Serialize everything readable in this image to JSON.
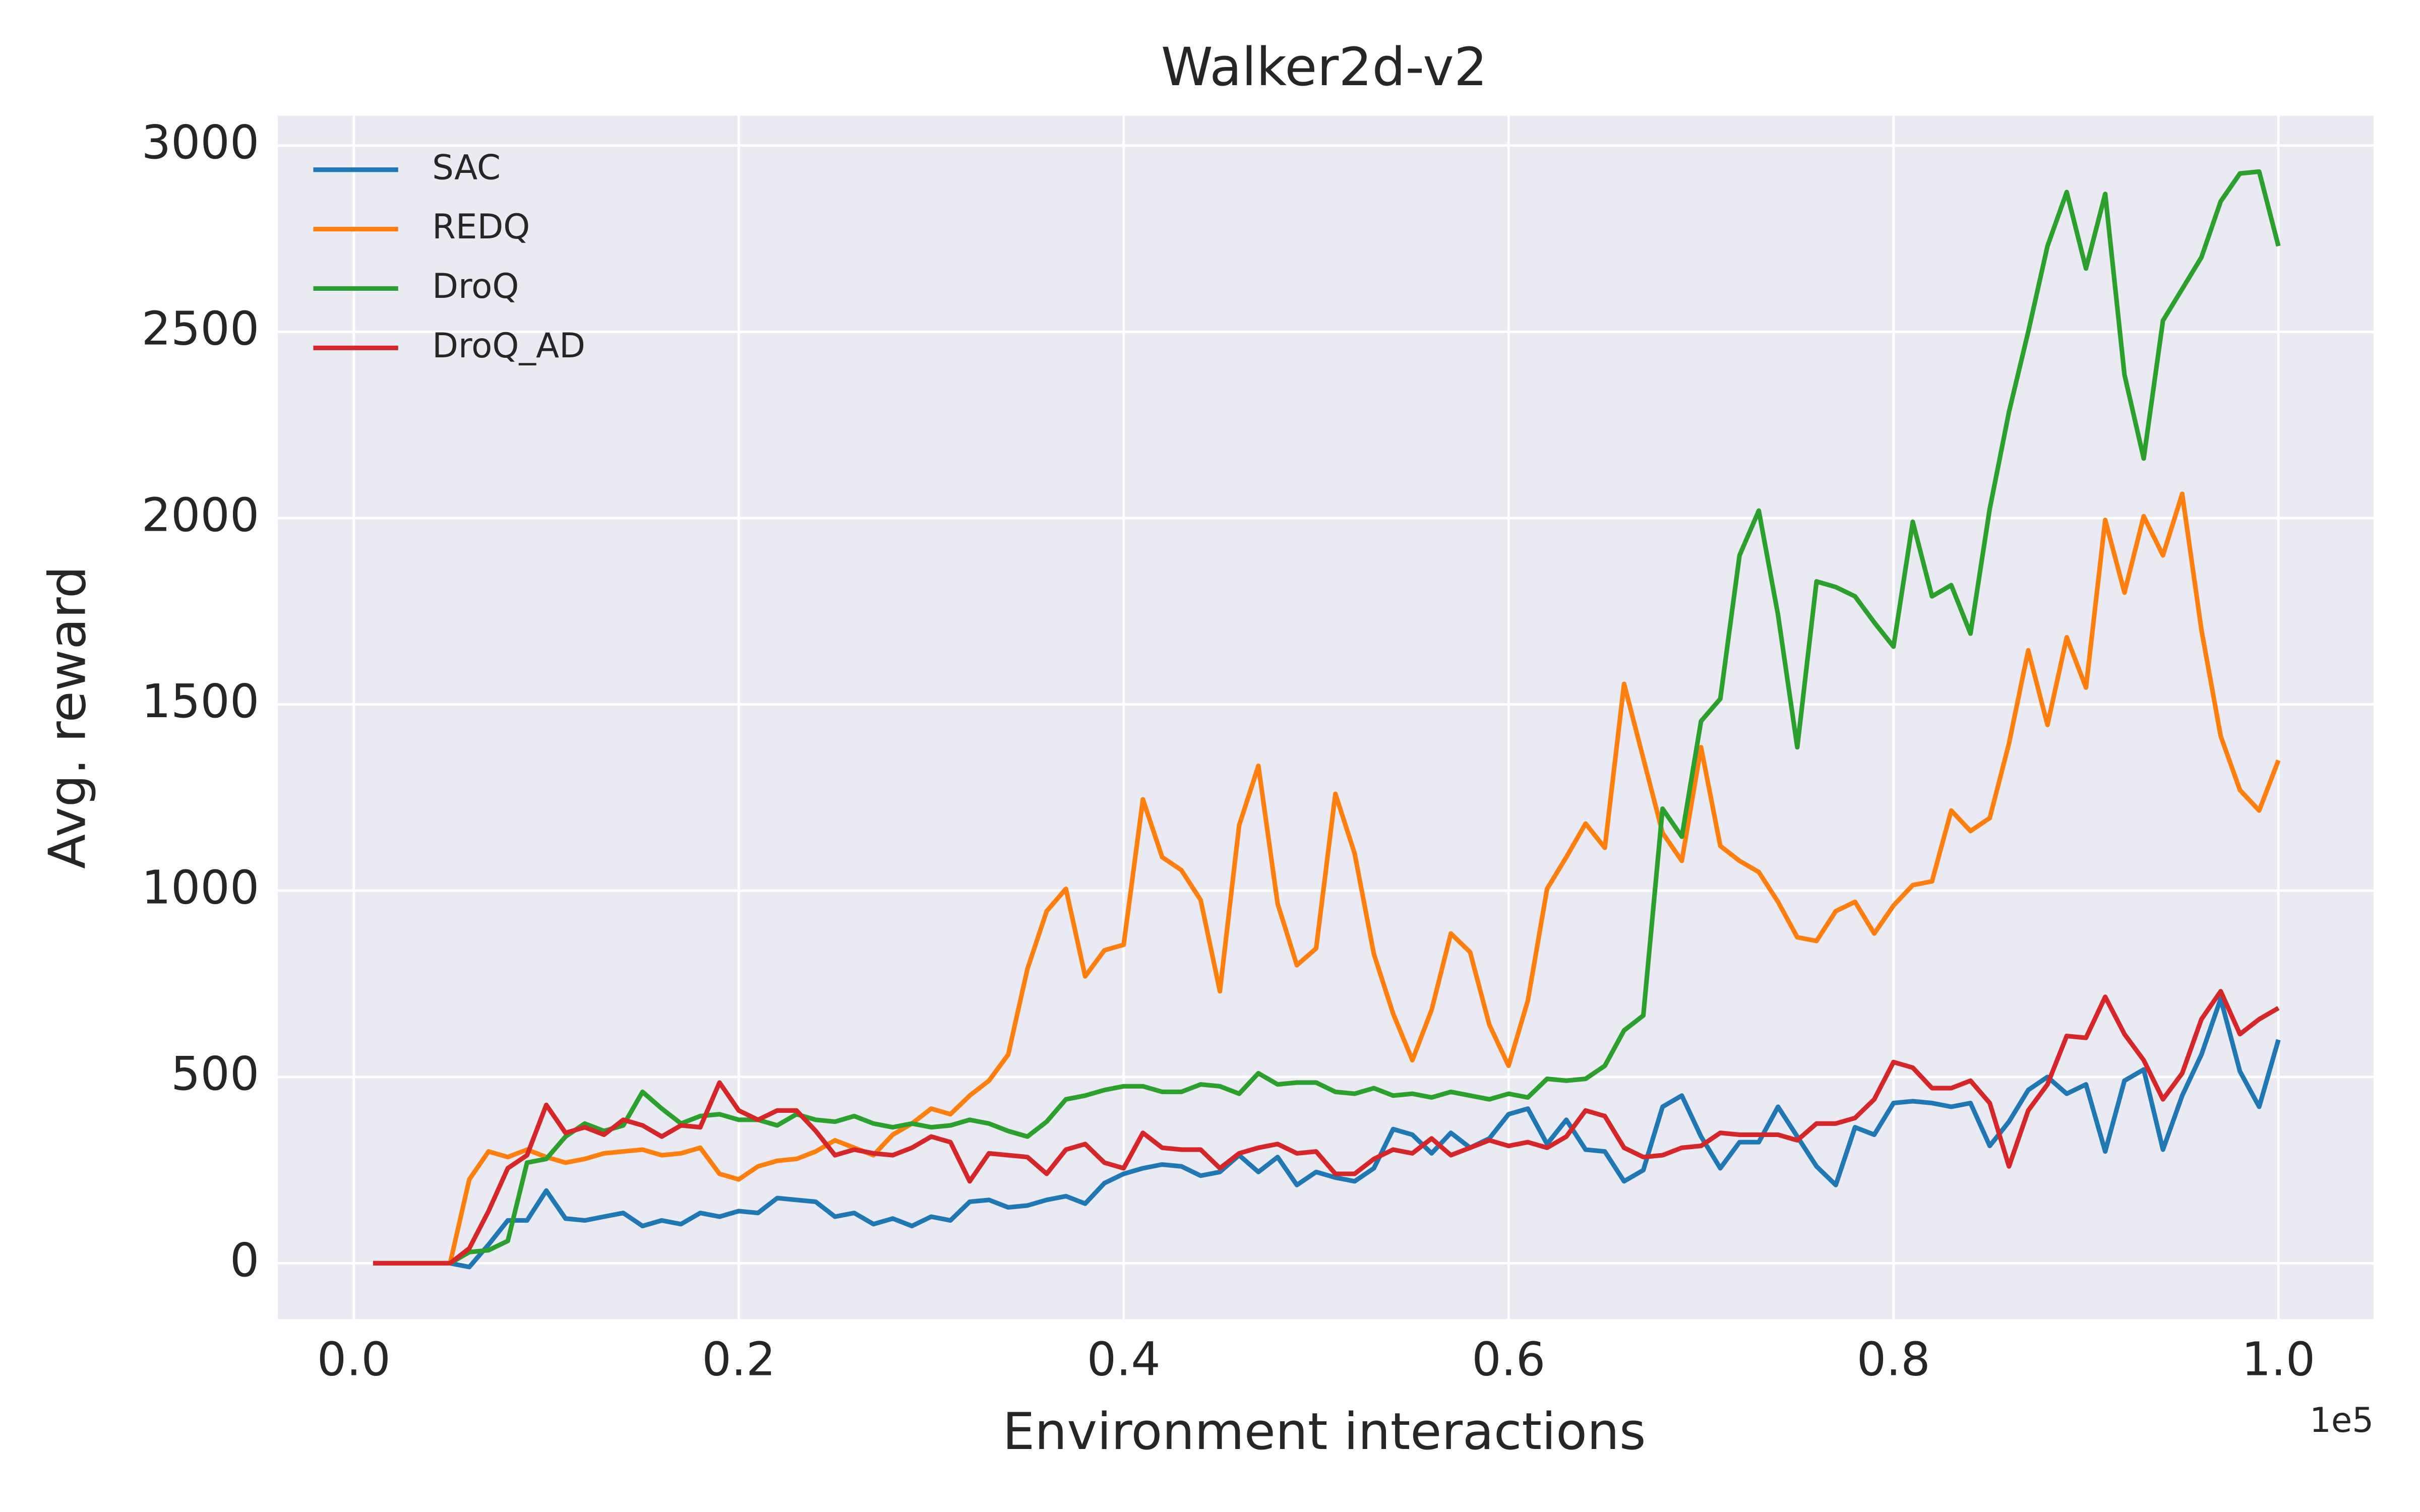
{
  "chart_data": {
    "type": "line",
    "title": "Walker2d-v2",
    "xlabel": "Environment interactions",
    "ylabel": "Avg. reward",
    "x_offset_label": "1e5",
    "x": [
      1000,
      2000,
      3000,
      4000,
      5000,
      6000,
      7000,
      8000,
      9000,
      10000,
      11000,
      12000,
      13000,
      14000,
      15000,
      16000,
      17000,
      18000,
      19000,
      20000,
      21000,
      22000,
      23000,
      24000,
      25000,
      26000,
      27000,
      28000,
      29000,
      30000,
      31000,
      32000,
      33000,
      34000,
      35000,
      36000,
      37000,
      38000,
      39000,
      40000,
      41000,
      42000,
      43000,
      44000,
      45000,
      46000,
      47000,
      48000,
      49000,
      50000,
      51000,
      52000,
      53000,
      54000,
      55000,
      56000,
      57000,
      58000,
      59000,
      60000,
      61000,
      62000,
      63000,
      64000,
      65000,
      66000,
      67000,
      68000,
      69000,
      70000,
      71000,
      72000,
      73000,
      74000,
      75000,
      76000,
      77000,
      78000,
      79000,
      80000,
      81000,
      82000,
      83000,
      84000,
      85000,
      86000,
      87000,
      88000,
      89000,
      90000,
      91000,
      92000,
      93000,
      94000,
      95000,
      96000,
      97000,
      98000,
      99000,
      100000
    ],
    "series": [
      {
        "name": "SAC",
        "color": "#1f77b4",
        "values": [
          0,
          0,
          0,
          0,
          0,
          -10,
          50,
          115,
          115,
          195,
          120,
          115,
          125,
          135,
          100,
          115,
          105,
          135,
          125,
          140,
          135,
          175,
          170,
          165,
          125,
          135,
          105,
          120,
          100,
          125,
          115,
          165,
          170,
          150,
          155,
          170,
          180,
          160,
          215,
          240,
          255,
          265,
          260,
          235,
          245,
          290,
          245,
          285,
          210,
          245,
          230,
          220,
          255,
          360,
          345,
          295,
          350,
          310,
          335,
          400,
          415,
          320,
          385,
          305,
          300,
          220,
          250,
          420,
          450,
          340,
          255,
          325,
          325,
          420,
          340,
          260,
          210,
          365,
          345,
          430,
          435,
          430,
          420,
          430,
          315,
          380,
          465,
          500,
          455,
          480,
          300,
          490,
          520,
          305,
          450,
          560,
          710,
          515,
          420,
          600
        ]
      },
      {
        "name": "REDQ",
        "color": "#ff7f0e",
        "values": [
          0,
          0,
          0,
          0,
          0,
          225,
          300,
          285,
          305,
          285,
          270,
          280,
          295,
          300,
          305,
          290,
          295,
          310,
          240,
          225,
          260,
          275,
          280,
          300,
          330,
          310,
          290,
          345,
          375,
          415,
          400,
          450,
          490,
          560,
          790,
          945,
          1005,
          770,
          840,
          855,
          1245,
          1090,
          1055,
          975,
          730,
          1175,
          1335,
          965,
          800,
          845,
          1260,
          1100,
          830,
          670,
          545,
          680,
          885,
          835,
          640,
          530,
          705,
          1005,
          1090,
          1180,
          1115,
          1555,
          1355,
          1155,
          1080,
          1385,
          1120,
          1080,
          1050,
          970,
          875,
          865,
          945,
          970,
          885,
          960,
          1015,
          1025,
          1215,
          1160,
          1195,
          1395,
          1645,
          1445,
          1680,
          1545,
          1995,
          1800,
          2005,
          1900,
          2065,
          1700,
          1415,
          1270,
          1215,
          1350
        ]
      },
      {
        "name": "DroQ",
        "color": "#2ca02c",
        "values": [
          0,
          0,
          0,
          0,
          0,
          30,
          35,
          60,
          270,
          280,
          340,
          375,
          355,
          370,
          460,
          415,
          375,
          395,
          400,
          385,
          385,
          370,
          400,
          385,
          380,
          395,
          375,
          365,
          375,
          365,
          370,
          385,
          375,
          355,
          340,
          380,
          440,
          450,
          465,
          475,
          475,
          460,
          460,
          480,
          475,
          455,
          510,
          480,
          485,
          485,
          460,
          455,
          470,
          450,
          455,
          445,
          460,
          450,
          440,
          455,
          445,
          495,
          490,
          495,
          530,
          625,
          665,
          1220,
          1145,
          1455,
          1515,
          1900,
          2020,
          1740,
          1385,
          1830,
          1815,
          1790,
          1720,
          1655,
          1990,
          1790,
          1820,
          1690,
          2025,
          2285,
          2500,
          2730,
          2875,
          2670,
          2870,
          2385,
          2160,
          2530,
          2615,
          2700,
          2850,
          2925,
          2930,
          2730
        ]
      },
      {
        "name": "DroQ_AD",
        "color": "#d62728",
        "values": [
          0,
          0,
          0,
          0,
          0,
          40,
          140,
          255,
          290,
          425,
          350,
          365,
          345,
          385,
          370,
          340,
          370,
          365,
          485,
          410,
          385,
          410,
          410,
          355,
          290,
          305,
          295,
          290,
          310,
          340,
          325,
          220,
          295,
          290,
          285,
          240,
          305,
          320,
          270,
          255,
          350,
          310,
          305,
          305,
          255,
          295,
          310,
          320,
          295,
          300,
          240,
          240,
          280,
          305,
          295,
          335,
          290,
          310,
          330,
          315,
          325,
          310,
          340,
          410,
          395,
          310,
          285,
          290,
          310,
          315,
          350,
          345,
          345,
          345,
          330,
          375,
          375,
          390,
          440,
          540,
          525,
          470,
          470,
          490,
          430,
          260,
          410,
          480,
          610,
          605,
          715,
          615,
          545,
          440,
          510,
          655,
          730,
          615,
          655,
          685
        ]
      }
    ],
    "xlim": [
      -3950,
      104950
    ],
    "xticks": [
      {
        "value": 0,
        "label": "0.0"
      },
      {
        "value": 20000,
        "label": "0.2"
      },
      {
        "value": 40000,
        "label": "0.4"
      },
      {
        "value": 60000,
        "label": "0.6"
      },
      {
        "value": 80000,
        "label": "0.8"
      },
      {
        "value": 100000,
        "label": "1.0"
      }
    ],
    "ylim": [
      -150,
      3080
    ],
    "yticks": [
      0,
      500,
      1000,
      1500,
      2000,
      2500,
      3000
    ],
    "grid": true,
    "legend": "upper left",
    "background": "#eaeaf2"
  }
}
